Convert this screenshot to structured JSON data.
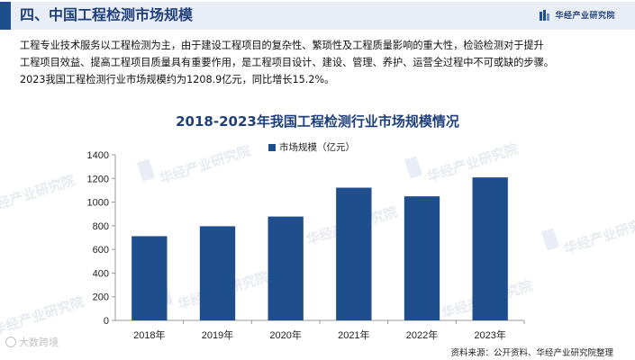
{
  "header": {
    "section_title": "四、中国工程检测市场规模",
    "brand": "华经产业研究院",
    "brand_icon": "bar-logo-icon"
  },
  "intro": {
    "line1": "工程专业技术服务以工程检测为主，由于建设工程项目的复杂性、繁琐性及工程质量影响的重大性，检验检测对于提升",
    "line2": "工程项目效益、提高工程项目质量具有重要作用，是工程项目设计、建设、管理、养护、运营全过程中不可或缺的步骤。",
    "line3": "2023我国工程检测行业市场规模约为1208.9亿元，同比增长15.2%。"
  },
  "chart_data": {
    "type": "bar",
    "title": "2018-2023年我国工程检测行业市场规模情况",
    "categories": [
      "2018年",
      "2019年",
      "2020年",
      "2021年",
      "2022年",
      "2023年"
    ],
    "series": [
      {
        "name": "市场规模（亿元）",
        "values": [
          712,
          796,
          878,
          1122,
          1049,
          1208.9
        ]
      }
    ],
    "ylim": [
      0,
      1400
    ],
    "yticks": [
      0,
      200,
      400,
      600,
      800,
      1000,
      1200,
      1400
    ],
    "grid": false,
    "legend": "top-center",
    "bar_color": "#1f4e8c"
  },
  "watermark": "华经产业研究院",
  "footer": {
    "source": "资料来源：公开资料、华经产业研究院整理",
    "corner": "大数跨境"
  }
}
